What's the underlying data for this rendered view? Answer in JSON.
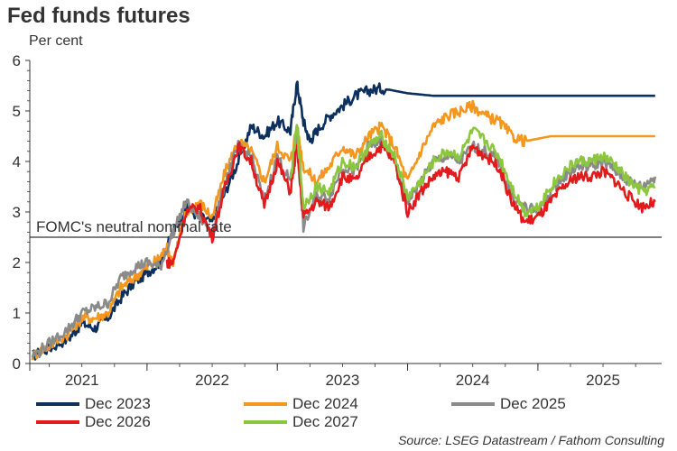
{
  "chart_data": {
    "type": "line",
    "title": "Fed funds futures",
    "subtitle": "Per cent",
    "xlabel": "",
    "ylabel": "",
    "xlim": [
      2020.6,
      2025.45
    ],
    "ylim": [
      0,
      6
    ],
    "yticks": [
      0,
      1,
      2,
      3,
      4,
      5,
      6
    ],
    "xtick_labels": [
      {
        "label": "2021",
        "x": 2021.0
      },
      {
        "label": "2022",
        "x": 2022.0
      },
      {
        "label": "2023",
        "x": 2023.0
      },
      {
        "label": "2024",
        "x": 2024.0
      },
      {
        "label": "2025",
        "x": 2025.0
      }
    ],
    "reference_line": {
      "label": "FOMC's neutral nominal rate",
      "y": 2.5
    },
    "series": [
      {
        "name": "Dec 2023",
        "color": "#0d2f5e",
        "x": [
          2020.62,
          2020.75,
          2020.9,
          2021.0,
          2021.1,
          2021.2,
          2021.3,
          2021.4,
          2021.5,
          2021.6,
          2021.7,
          2021.8,
          2021.9,
          2022.0,
          2022.1,
          2022.2,
          2022.3,
          2022.4,
          2022.5,
          2022.6,
          2022.65,
          2022.7,
          2022.75,
          2022.8,
          2022.9,
          2023.0,
          2023.1,
          2023.2,
          2023.3,
          2023.4,
          2023.5,
          2023.7,
          2024.0,
          2024.3,
          2024.6,
          2024.8,
          2025.0,
          2025.2,
          2025.4
        ],
        "y": [
          0.15,
          0.3,
          0.5,
          0.8,
          0.7,
          0.9,
          1.3,
          1.6,
          1.8,
          2.0,
          2.6,
          3.1,
          2.9,
          2.8,
          3.4,
          4.0,
          4.7,
          4.5,
          4.8,
          4.6,
          5.55,
          4.8,
          4.4,
          4.6,
          4.9,
          5.1,
          5.3,
          5.4,
          5.45,
          5.4,
          5.35,
          5.3,
          5.3,
          5.3,
          5.3,
          5.3,
          5.3,
          5.3,
          5.3
        ]
      },
      {
        "name": "Dec 2024",
        "color": "#f5961e",
        "x": [
          2020.62,
          2020.75,
          2020.9,
          2021.0,
          2021.1,
          2021.2,
          2021.3,
          2021.4,
          2021.5,
          2021.6,
          2021.65,
          2021.7,
          2021.8,
          2021.9,
          2022.0,
          2022.1,
          2022.2,
          2022.3,
          2022.4,
          2022.5,
          2022.6,
          2022.65,
          2022.7,
          2022.8,
          2022.9,
          2023.0,
          2023.1,
          2023.2,
          2023.3,
          2023.4,
          2023.5,
          2023.6,
          2023.7,
          2023.8,
          2023.9,
          2024.0,
          2024.1,
          2024.2,
          2024.3,
          2024.4,
          2024.6,
          2024.8,
          2025.0,
          2025.2,
          2025.4
        ],
        "y": [
          0.15,
          0.35,
          0.6,
          0.9,
          0.9,
          1.0,
          1.5,
          1.7,
          1.9,
          2.1,
          2.3,
          2.0,
          3.0,
          3.2,
          2.9,
          3.8,
          4.4,
          4.2,
          3.6,
          4.3,
          4.0,
          4.7,
          3.9,
          3.6,
          3.9,
          4.3,
          4.1,
          4.5,
          4.7,
          4.3,
          3.6,
          4.2,
          4.7,
          4.9,
          5.0,
          5.1,
          4.9,
          4.8,
          4.5,
          4.4,
          4.5,
          4.5,
          4.5,
          4.5,
          4.5
        ]
      },
      {
        "name": "Dec 2025",
        "color": "#8a8a8a",
        "x": [
          2020.62,
          2020.75,
          2020.9,
          2021.0,
          2021.1,
          2021.2,
          2021.3,
          2021.4,
          2021.5,
          2021.6,
          2021.7,
          2021.8,
          2021.9,
          2022.0,
          2022.1,
          2022.2,
          2022.3,
          2022.4,
          2022.5,
          2022.6,
          2022.65,
          2022.7,
          2022.8,
          2022.9,
          2023.0,
          2023.1,
          2023.2,
          2023.3,
          2023.4,
          2023.5,
          2023.6,
          2023.7,
          2023.8,
          2023.9,
          2024.0,
          2024.1,
          2024.2,
          2024.3,
          2024.4,
          2024.5,
          2024.6,
          2024.7,
          2024.8,
          2024.9,
          2025.0,
          2025.1,
          2025.2,
          2025.3,
          2025.4
        ],
        "y": [
          0.15,
          0.4,
          0.7,
          1.0,
          1.1,
          1.2,
          1.7,
          1.9,
          2.0,
          1.9,
          2.6,
          3.2,
          2.9,
          2.6,
          3.6,
          4.3,
          4.1,
          3.2,
          4.1,
          3.6,
          4.4,
          2.7,
          3.3,
          3.3,
          3.9,
          3.8,
          4.3,
          4.4,
          4.0,
          3.2,
          3.6,
          4.0,
          4.1,
          4.0,
          4.3,
          4.2,
          4.0,
          3.3,
          3.1,
          3.0,
          3.4,
          3.7,
          3.9,
          3.9,
          4.0,
          3.8,
          3.6,
          3.5,
          3.7
        ]
      },
      {
        "name": "Dec 2026",
        "color": "#e31a1c",
        "x": [
          2021.65,
          2021.7,
          2021.8,
          2021.9,
          2022.0,
          2022.1,
          2022.2,
          2022.3,
          2022.4,
          2022.5,
          2022.6,
          2022.65,
          2022.7,
          2022.8,
          2022.9,
          2023.0,
          2023.1,
          2023.2,
          2023.3,
          2023.4,
          2023.5,
          2023.6,
          2023.7,
          2023.8,
          2023.9,
          2024.0,
          2024.1,
          2024.2,
          2024.3,
          2024.4,
          2024.5,
          2024.6,
          2024.7,
          2024.8,
          2024.9,
          2025.0,
          2025.1,
          2025.2,
          2025.3,
          2025.4
        ],
        "y": [
          2.0,
          2.0,
          3.0,
          3.1,
          2.5,
          3.5,
          4.3,
          4.0,
          3.1,
          4.0,
          3.4,
          4.3,
          2.9,
          3.2,
          3.1,
          3.7,
          3.6,
          4.1,
          4.3,
          4.0,
          3.0,
          3.4,
          3.7,
          3.8,
          3.7,
          4.3,
          4.1,
          3.9,
          3.2,
          2.8,
          2.9,
          3.2,
          3.5,
          3.7,
          3.7,
          3.8,
          3.6,
          3.3,
          3.1,
          3.2
        ]
      },
      {
        "name": "Dec 2027",
        "color": "#8cc63f",
        "x": [
          2022.6,
          2022.65,
          2022.7,
          2022.8,
          2022.9,
          2023.0,
          2023.1,
          2023.2,
          2023.3,
          2023.4,
          2023.5,
          2023.6,
          2023.7,
          2023.8,
          2023.9,
          2024.0,
          2024.1,
          2024.2,
          2024.3,
          2024.4,
          2024.5,
          2024.6,
          2024.7,
          2024.8,
          2024.9,
          2025.0,
          2025.1,
          2025.2,
          2025.3,
          2025.4
        ],
        "y": [
          3.6,
          4.7,
          3.1,
          3.5,
          3.4,
          4.0,
          3.9,
          4.3,
          4.5,
          4.1,
          3.3,
          3.6,
          4.0,
          4.2,
          4.1,
          4.6,
          4.4,
          4.1,
          3.5,
          3.0,
          3.1,
          3.5,
          3.8,
          4.0,
          4.0,
          4.1,
          3.9,
          3.6,
          3.4,
          3.5
        ]
      }
    ]
  },
  "legend": [
    {
      "label": "Dec 2023",
      "color": "#0d2f5e"
    },
    {
      "label": "Dec 2024",
      "color": "#f5961e"
    },
    {
      "label": "Dec 2025",
      "color": "#8a8a8a"
    },
    {
      "label": "Dec 2026",
      "color": "#e31a1c"
    },
    {
      "label": "Dec 2027",
      "color": "#8cc63f"
    }
  ],
  "source": "Source: LSEG Datastream / Fathom Consulting"
}
